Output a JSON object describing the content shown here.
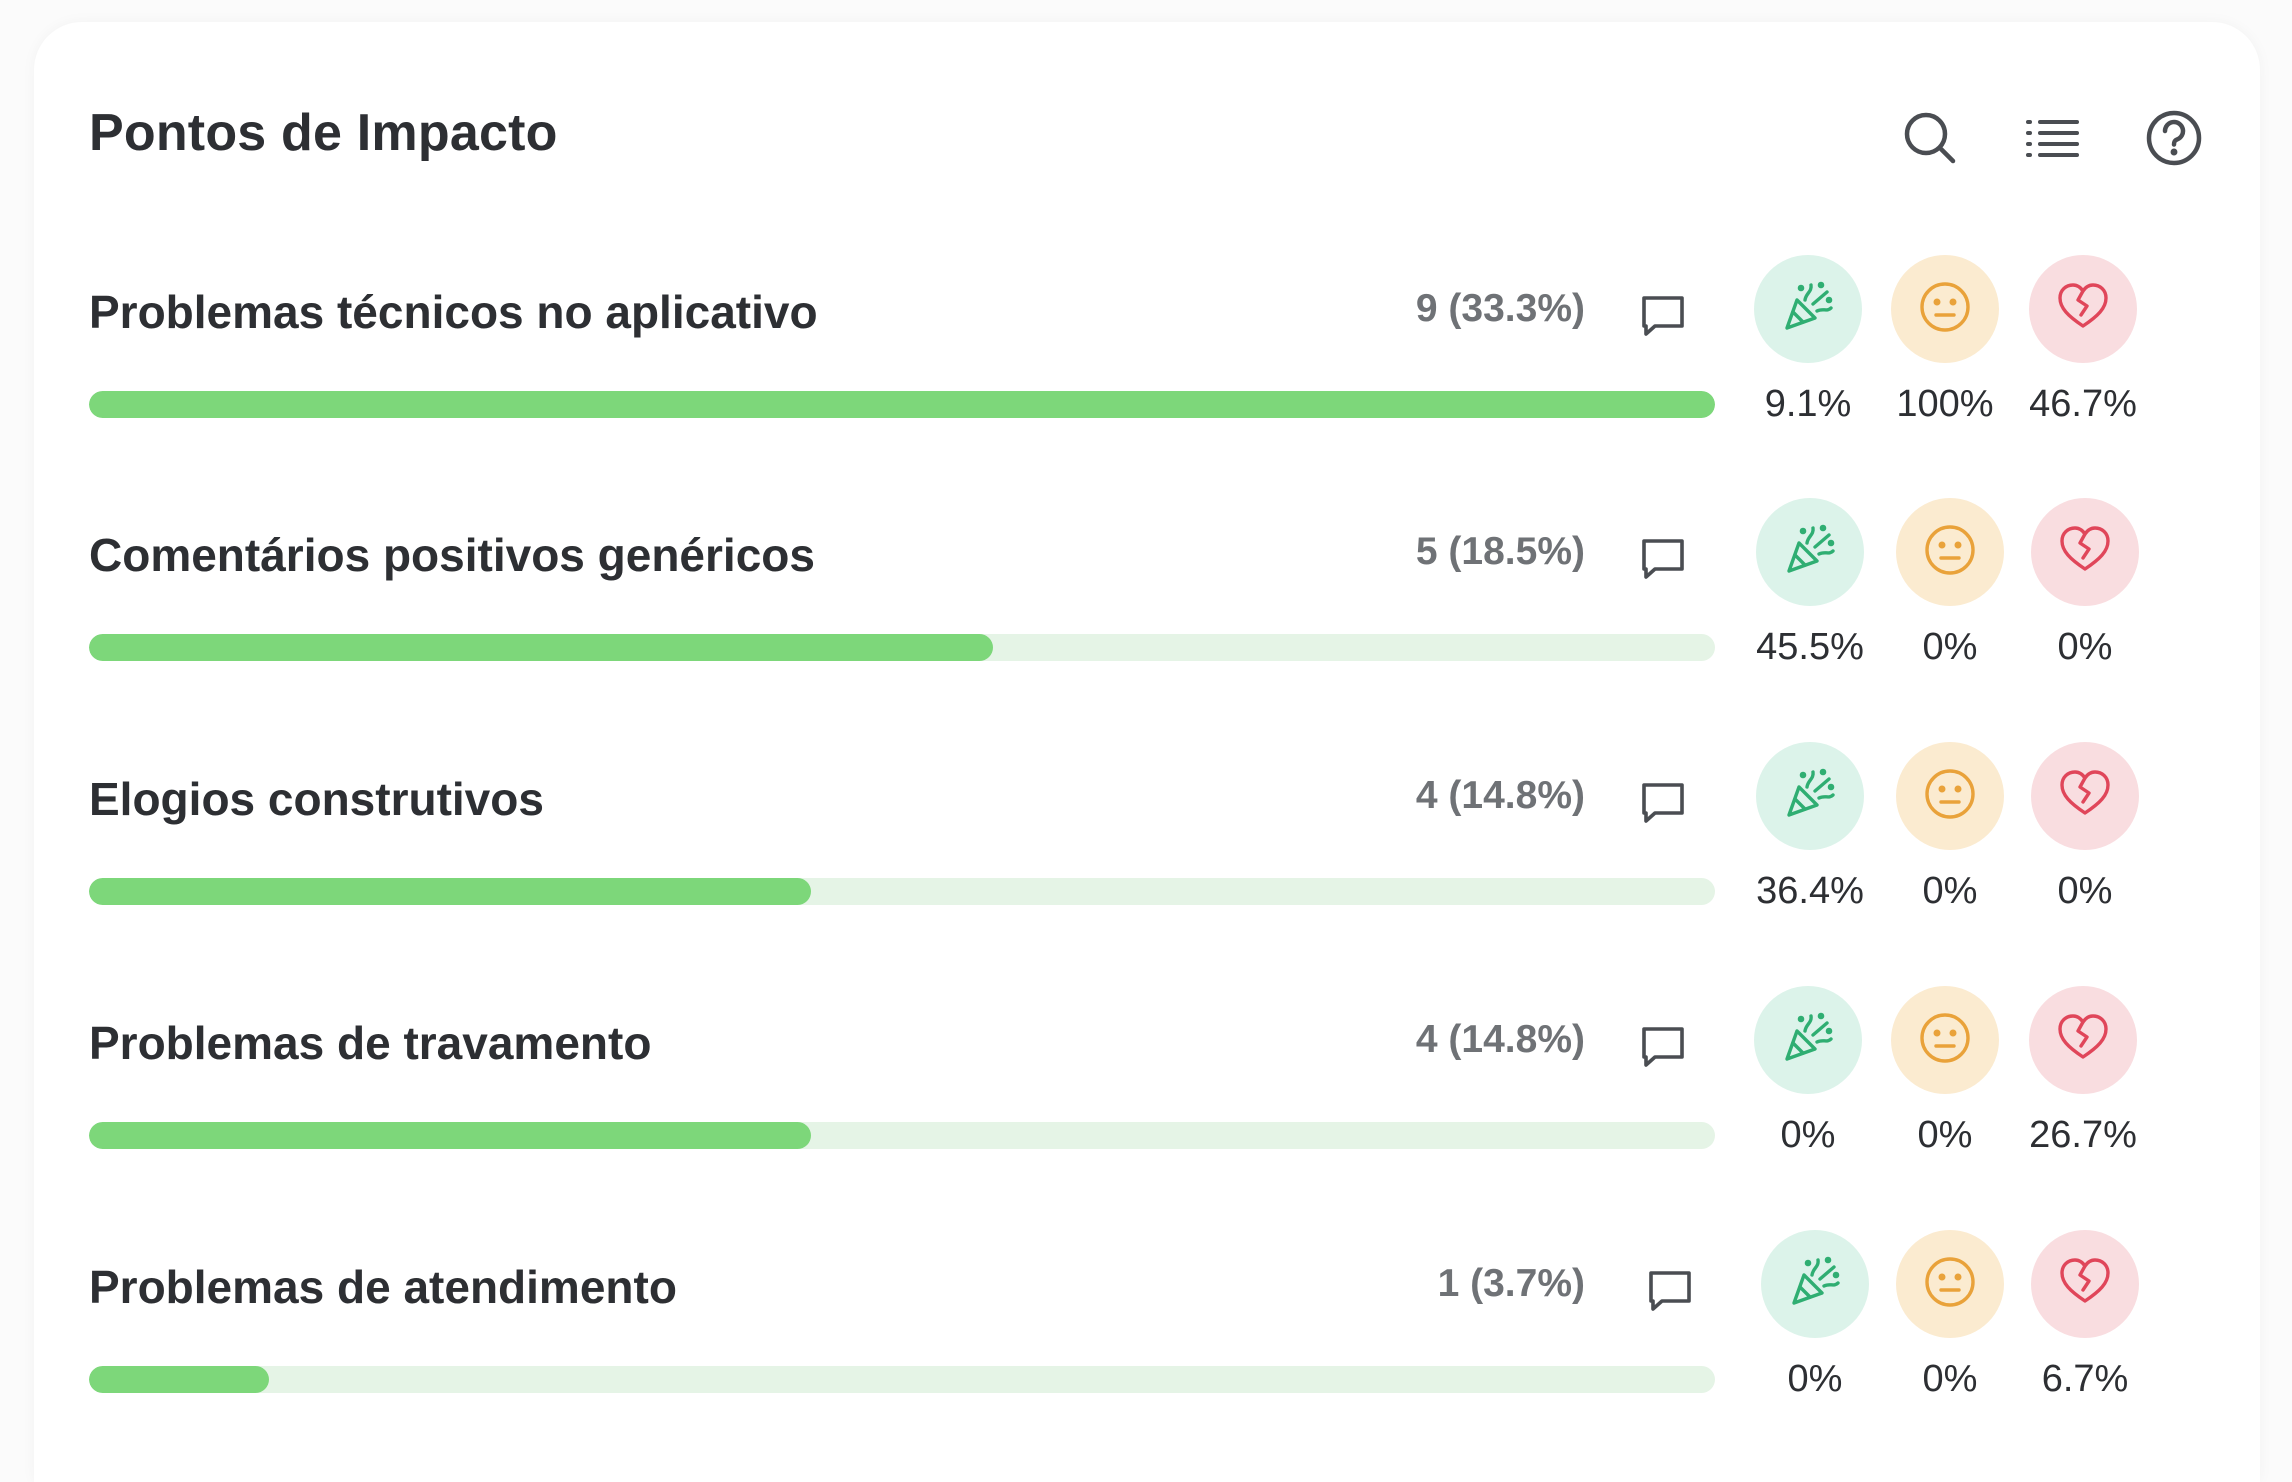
{
  "panel": {
    "title": "Pontos de Impacto"
  },
  "toolbar": {
    "search_icon": "search-icon",
    "list_icon": "list-icon",
    "help_icon": "help-circle-icon"
  },
  "colors": {
    "bar_fill": "#7dd77a",
    "bar_track": "#e5f4e6",
    "positive_bg": "#dcf3ea",
    "positive_icon": "#2fae72",
    "neutral_bg": "#fbebd0",
    "neutral_icon": "#e9a23a",
    "negative_bg": "#f9dde0",
    "negative_icon": "#e0465a"
  },
  "sentiment_icons": {
    "positive": "party-popper-icon",
    "neutral": "neutral-face-icon",
    "negative": "broken-heart-icon"
  },
  "items": [
    {
      "label": "Problemas técnicos no aplicativo",
      "count": "9 (33.3%)",
      "share": 1.0,
      "positive": "9.1%",
      "neutral": "100%",
      "negative": "46.7%"
    },
    {
      "label": "Comentários positivos genéricos",
      "count": "5 (18.5%)",
      "share": 0.556,
      "positive": "45.5%",
      "neutral": "0%",
      "negative": "0%"
    },
    {
      "label": "Elogios construtivos",
      "count": "4 (14.8%)",
      "share": 0.444,
      "positive": "36.4%",
      "neutral": "0%",
      "negative": "0%"
    },
    {
      "label": "Problemas de travamento",
      "count": "4 (14.8%)",
      "share": 0.444,
      "positive": "0%",
      "neutral": "0%",
      "negative": "26.7%"
    },
    {
      "label": "Problemas de atendimento",
      "count": "1 (3.7%)",
      "share": 0.111,
      "positive": "0%",
      "neutral": "0%",
      "negative": "6.7%"
    }
  ]
}
